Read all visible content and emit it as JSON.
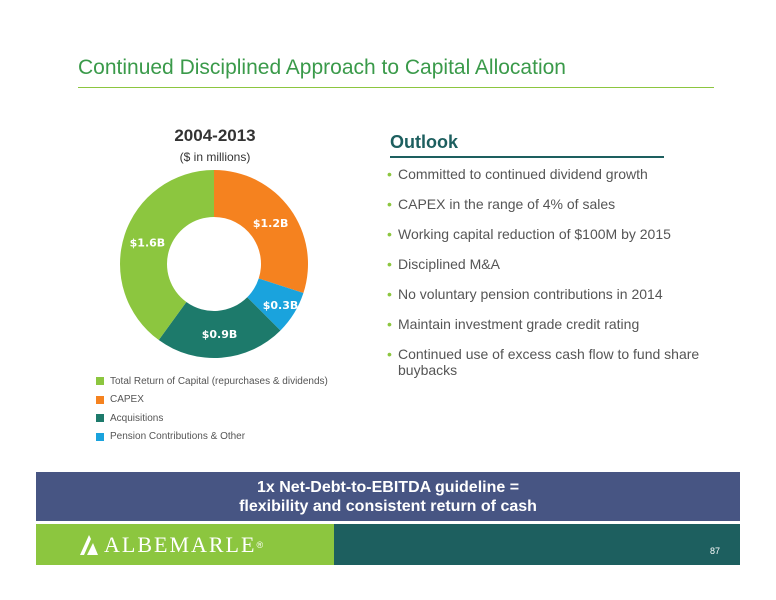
{
  "title": "Continued Disciplined Approach to Capital Allocation",
  "chart_data": {
    "type": "pie",
    "title": "2004-2013",
    "subtitle": "($ in millions)",
    "categories": [
      "CAPEX",
      "Pension Contributions & Other",
      "Acquisitions",
      "Total Return of Capital (repurchases & dividends)"
    ],
    "values": [
      1.2,
      0.3,
      0.9,
      1.6
    ],
    "data_labels": [
      "$1.2B",
      "$0.3B",
      "$0.9B",
      "$1.6B"
    ],
    "colors": [
      "#f5821f",
      "#1aa3dd",
      "#1d7a6b",
      "#8cc63f"
    ],
    "donut": true
  },
  "legend": [
    {
      "label": "Total Return of Capital (repurchases & dividends)",
      "color": "#8cc63f"
    },
    {
      "label": "CAPEX",
      "color": "#f5821f"
    },
    {
      "label": "Acquisitions",
      "color": "#1d7a6b"
    },
    {
      "label": "Pension Contributions & Other",
      "color": "#1aa3dd"
    }
  ],
  "outlook": {
    "title": "Outlook",
    "bullets": [
      "Committed to continued dividend growth",
      "CAPEX in the range of 4% of sales",
      "Working capital reduction of $100M by 2015",
      "Disciplined M&A",
      "No voluntary pension contributions in 2014",
      "Maintain investment grade credit rating",
      "Continued use of excess cash flow to fund share buybacks"
    ]
  },
  "banner": {
    "line1": "1x Net-Debt-to-EBITDA guideline =",
    "line2": "flexibility and consistent return of cash"
  },
  "footer": {
    "logo_text": "ALBEMARLE",
    "logo_mark": "®",
    "page_number": "87"
  }
}
